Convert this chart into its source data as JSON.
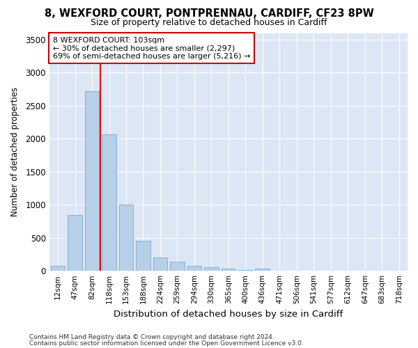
{
  "title_line1": "8, WEXFORD COURT, PONTPRENNAU, CARDIFF, CF23 8PW",
  "title_line2": "Size of property relative to detached houses in Cardiff",
  "xlabel": "Distribution of detached houses by size in Cardiff",
  "ylabel": "Number of detached properties",
  "categories": [
    "12sqm",
    "47sqm",
    "82sqm",
    "118sqm",
    "153sqm",
    "188sqm",
    "224sqm",
    "259sqm",
    "294sqm",
    "330sqm",
    "365sqm",
    "400sqm",
    "436sqm",
    "471sqm",
    "506sqm",
    "541sqm",
    "577sqm",
    "612sqm",
    "647sqm",
    "683sqm",
    "718sqm"
  ],
  "values": [
    75,
    850,
    2720,
    2070,
    1000,
    450,
    200,
    135,
    75,
    55,
    35,
    15,
    30,
    5,
    2,
    1,
    1,
    1,
    1,
    1,
    1
  ],
  "bar_color": "#b8cfe8",
  "bar_edge_color": "#7aaad0",
  "red_line_x": 2.5,
  "annotation_line1": "8 WEXFORD COURT: 103sqm",
  "annotation_line2": "← 30% of detached houses are smaller (2,297)",
  "annotation_line3": "69% of semi-detached houses are larger (5,216) →",
  "annotation_box_color": "#ffffff",
  "annotation_box_edge_color": "#cc0000",
  "ylim": [
    0,
    3600
  ],
  "yticks": [
    0,
    500,
    1000,
    1500,
    2000,
    2500,
    3000,
    3500
  ],
  "fig_bg_color": "#ffffff",
  "plot_bg_color": "#dce6f5",
  "grid_color": "#ffffff",
  "footer_line1": "Contains HM Land Registry data © Crown copyright and database right 2024.",
  "footer_line2": "Contains public sector information licensed under the Open Government Licence v3.0."
}
